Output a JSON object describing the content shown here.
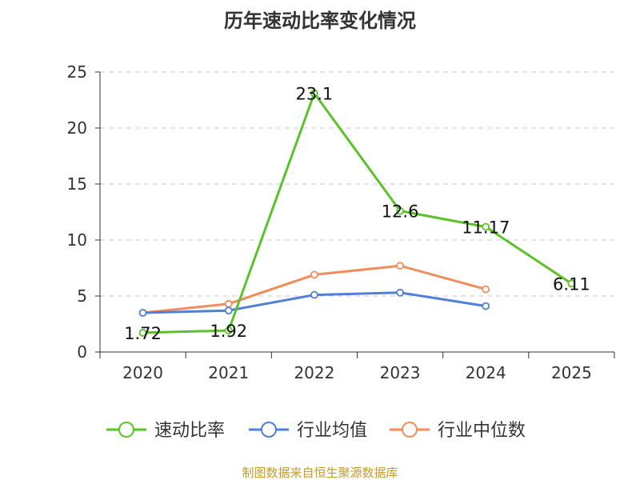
{
  "chart_data": {
    "type": "line",
    "title": "历年速动比率变化情况",
    "categories": [
      "2020",
      "2021",
      "2022",
      "2023",
      "2024",
      "2025"
    ],
    "ylim": [
      0,
      25
    ],
    "yticks": [
      0,
      5,
      10,
      15,
      20,
      25
    ],
    "grid": true,
    "legend_position": "bottom",
    "series": [
      {
        "name": "速动比率",
        "color": "#5cc22a",
        "values": [
          1.72,
          1.92,
          23.1,
          12.6,
          11.17,
          6.11
        ],
        "labels": [
          "1.72",
          "1.92",
          "23.1",
          "12.6",
          "11.17",
          "6.11"
        ]
      },
      {
        "name": "行业均值",
        "color": "#4f7fd8",
        "values": [
          3.5,
          3.7,
          5.1,
          5.3,
          4.1,
          null
        ]
      },
      {
        "name": "行业中位数",
        "color": "#f28c5b",
        "values": [
          3.5,
          4.3,
          6.9,
          7.7,
          5.6,
          null
        ]
      }
    ]
  },
  "source_text": "制图数据来自恒生聚源数据库",
  "source_color": "#c59a2c"
}
